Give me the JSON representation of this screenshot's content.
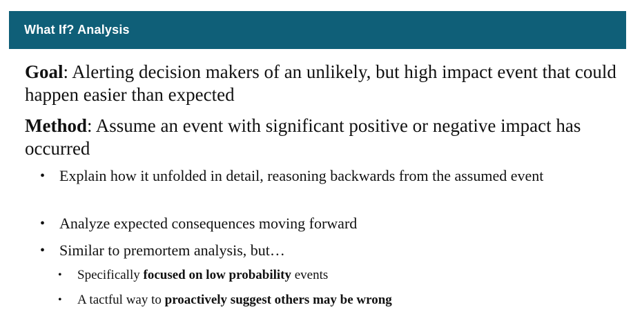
{
  "header": {
    "title": "What If? Analysis"
  },
  "goal": {
    "term": "Goal",
    "text": ": Alerting decision makers of an unlikely, but high impact event that could happen easier than expected"
  },
  "method": {
    "term": "Method",
    "text": ": Assume an event with significant positive or negative impact has occurred"
  },
  "bullets": [
    "Explain how it unfolded in detail, reasoning backwards from the assumed event",
    "Analyze expected consequences moving forward",
    "Similar to premortem analysis, but…"
  ],
  "subbullets": [
    {
      "pre": "Specifically ",
      "emph": "focused on low probability",
      "post": " events"
    },
    {
      "pre": "A tactful way to ",
      "emph": "proactively suggest others may be wrong",
      "post": ""
    }
  ],
  "bullet_glyph": "•"
}
